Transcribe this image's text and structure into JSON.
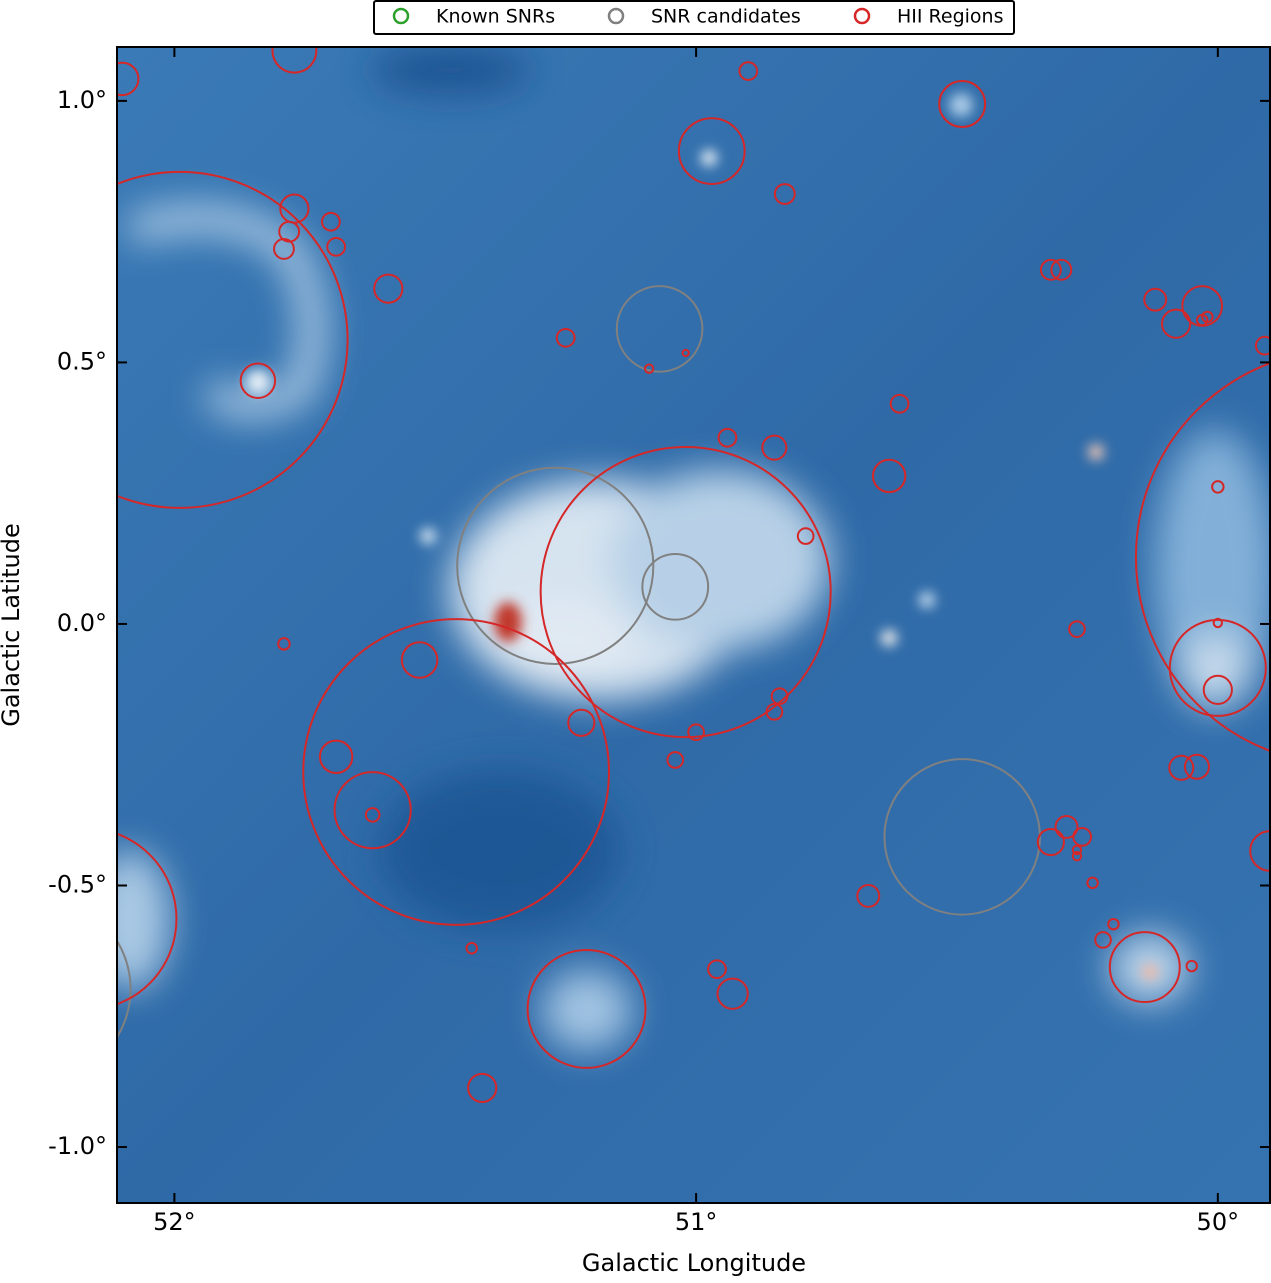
{
  "chart_data": {
    "type": "sky-circles",
    "xlabel": "Galactic Longitude",
    "ylabel": "Galactic Latitude",
    "xlim": [
      52.11,
      49.9
    ],
    "ylim": [
      -1.107,
      1.103
    ],
    "xticks": [
      {
        "value": 52,
        "label": "52°"
      },
      {
        "value": 51,
        "label": "51°"
      },
      {
        "value": 50,
        "label": "50°"
      }
    ],
    "yticks": [
      {
        "value": 1.0,
        "label": "1.0°"
      },
      {
        "value": 0.5,
        "label": "0.5°"
      },
      {
        "value": 0.0,
        "label": "0.0°"
      },
      {
        "value": -0.5,
        "label": "-0.5°"
      },
      {
        "value": -1.0,
        "label": "-1.0°"
      }
    ],
    "legend": "top",
    "series": [
      {
        "name": "Known SNRs",
        "color": "#2ca02c",
        "x": [],
        "y": [],
        "r": []
      },
      {
        "name": "SNR candidates",
        "color": "#808080",
        "x": [
          51.07,
          51.27,
          51.04,
          50.49,
          52.26
        ],
        "y": [
          0.564,
          0.111,
          0.071,
          -0.407,
          -0.698
        ],
        "r": [
          0.082,
          0.188,
          0.063,
          0.149,
          0.176
        ]
      },
      {
        "name": "HII Regions",
        "color": "#d62728",
        "x": [
          51.99,
          51.84,
          51.77,
          51.78,
          51.79,
          51.7,
          51.69,
          51.59,
          51.77,
          52.1,
          50.9,
          50.49,
          50.97,
          50.83,
          51.25,
          50.61,
          50.94,
          50.85,
          50.63,
          51.02,
          50.79,
          51.46,
          51.53,
          51.79,
          51.69,
          51.62,
          51.62,
          51.22,
          51.0,
          51.04,
          50.84,
          50.85,
          51.43,
          51.21,
          50.96,
          50.93,
          51.41,
          50.67,
          50.32,
          50.3,
          50.12,
          50.03,
          50.08,
          50.03,
          50.02,
          49.91,
          49.76,
          50.0,
          50.0,
          50.0,
          50.0,
          50.27,
          50.07,
          50.04,
          50.29,
          50.32,
          50.26,
          50.27,
          50.27,
          50.24,
          50.2,
          50.22,
          50.14,
          50.05,
          52.17,
          49.9,
          51.09,
          51.02
        ],
        "y": [
          0.543,
          0.465,
          0.794,
          0.75,
          0.717,
          0.769,
          0.721,
          0.641,
          1.096,
          1.042,
          1.057,
          0.994,
          0.904,
          0.822,
          0.547,
          0.421,
          0.356,
          0.337,
          0.283,
          0.061,
          0.168,
          -0.283,
          -0.069,
          -0.038,
          -0.254,
          -0.356,
          -0.365,
          -0.189,
          -0.207,
          -0.26,
          -0.138,
          -0.168,
          -0.62,
          -0.736,
          -0.66,
          -0.707,
          -0.887,
          -0.52,
          0.677,
          0.677,
          0.62,
          0.608,
          0.574,
          0.581,
          0.587,
          0.532,
          0.128,
          0.262,
          -0.084,
          -0.126,
          0.002,
          -0.01,
          -0.275,
          -0.273,
          -0.388,
          -0.417,
          -0.407,
          -0.432,
          -0.444,
          -0.495,
          -0.574,
          -0.604,
          -0.656,
          -0.654,
          -0.564,
          -0.434,
          0.488,
          0.518
        ],
        "r": [
          0.322,
          0.033,
          0.027,
          0.019,
          0.019,
          0.017,
          0.017,
          0.027,
          0.042,
          0.031,
          0.017,
          0.044,
          0.063,
          0.019,
          0.017,
          0.017,
          0.017,
          0.023,
          0.031,
          0.278,
          0.015,
          0.293,
          0.034,
          0.011,
          0.031,
          0.073,
          0.013,
          0.025,
          0.015,
          0.015,
          0.015,
          0.015,
          0.01,
          0.113,
          0.017,
          0.029,
          0.027,
          0.021,
          0.019,
          0.019,
          0.021,
          0.038,
          0.027,
          0.01,
          0.01,
          0.017,
          0.397,
          0.011,
          0.092,
          0.027,
          0.008,
          0.015,
          0.023,
          0.023,
          0.021,
          0.025,
          0.017,
          0.008,
          0.008,
          0.01,
          0.01,
          0.015,
          0.067,
          0.01,
          0.174,
          0.038,
          0.008,
          0.006
        ]
      }
    ]
  }
}
